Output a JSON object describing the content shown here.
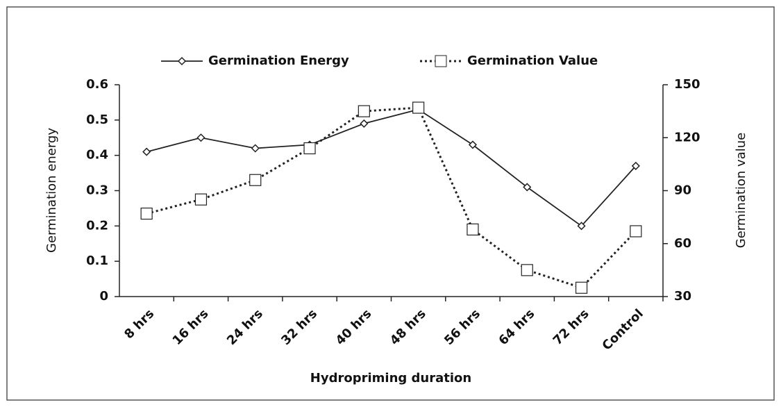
{
  "chart_data": {
    "type": "line",
    "categories": [
      "8 hrs",
      "16 hrs",
      "24 hrs",
      "32 hrs",
      "40 hrs",
      "48 hrs",
      "56 hrs",
      "64 hrs",
      "72 hrs",
      "Control"
    ],
    "series": [
      {
        "name": "Germination Energy",
        "color": "#222222",
        "marker": "diamond",
        "dash": "solid",
        "values": [
          0.41,
          0.45,
          0.42,
          0.43,
          0.49,
          0.53,
          0.43,
          0.31,
          0.2,
          0.37
        ]
      },
      {
        "name": "Germination Value",
        "color": "#222222",
        "marker": "square",
        "dash": "dotted",
        "axis": "y2",
        "values": [
          77,
          85,
          96,
          114,
          135,
          137,
          68,
          45,
          35,
          67
        ]
      }
    ],
    "x_label": "Hydropriming duration",
    "y_label": "Germination energy",
    "y2_label": "Germination value",
    "ylim": [
      0,
      0.6
    ],
    "yticks": [
      0,
      0.1,
      0.2,
      0.3,
      0.4,
      0.5,
      0.6
    ],
    "y2lim": [
      30,
      150
    ],
    "y2ticks": [
      30,
      60,
      90,
      120,
      150
    ],
    "legend": "top",
    "grid": false
  }
}
